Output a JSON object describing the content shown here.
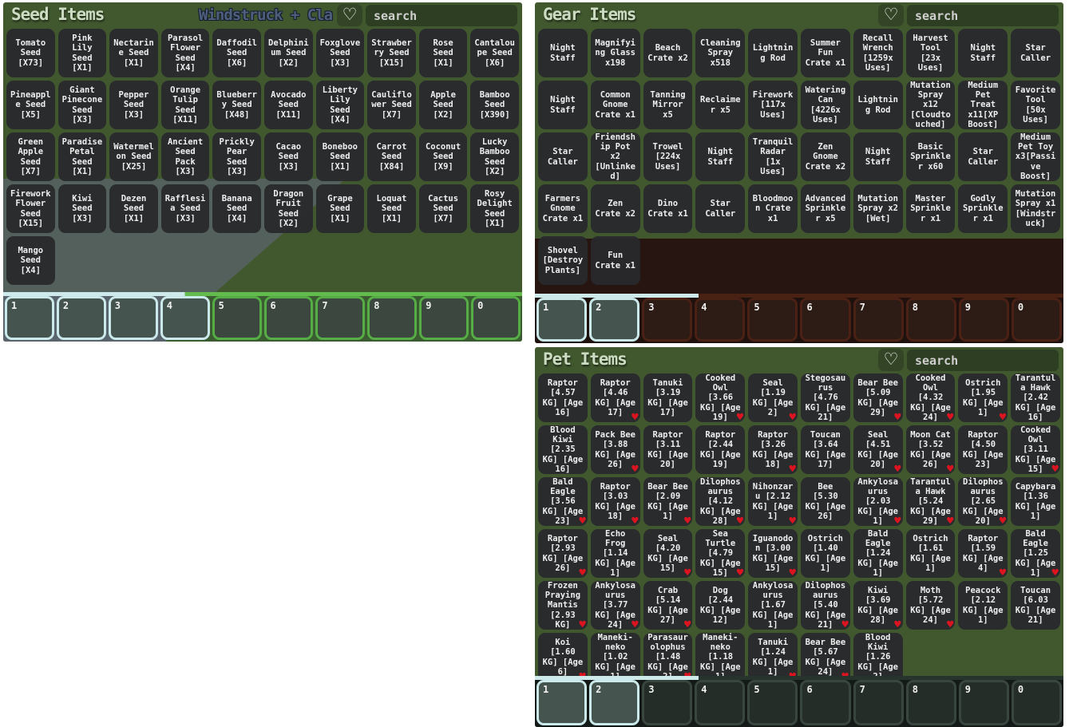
{
  "colors": {
    "panel_green": "#41582f",
    "tile_bg": "#292a2d",
    "hotbar_cyan": "#cbe8ea",
    "hotbar_green": "#56ad45",
    "hotbar_maroon": "#4a2114",
    "heart_red": "#dc1420",
    "scenery_gray": "#59636b",
    "gear_lower_maroon": "#271511"
  },
  "seed": {
    "title": "Seed Items",
    "event_text": "Windstruck + Cla",
    "search_placeholder": "search",
    "items": [
      "Tomato Seed [X73]",
      "Pink Lily Seed [X1]",
      "Nectarine Seed [X1]",
      "Parasol Flower Seed [X4]",
      "Daffodil Seed [X6]",
      "Delphinium Seed [X2]",
      "Foxglove Seed [X3]",
      "Strawberry Seed [X15]",
      "Rose Seed [X1]",
      "Cantaloupe Seed [X6]",
      "Pineapple Seed [X5]",
      "Giant Pinecone Seed [X3]",
      "Pepper Seed [X3]",
      "Orange Tulip Seed [X11]",
      "Blueberry Seed [X48]",
      "Avocado Seed [X11]",
      "Liberty Lily Seed [X4]",
      "Cauliflower Seed [X7]",
      "Apple Seed [X2]",
      "Bamboo Seed [X390]",
      "Green Apple Seed [X7]",
      "Paradise Petal Seed [X1]",
      "Watermelon Seed [X25]",
      "Ancient Seed Pack [X3]",
      "Prickly Pear Seed [X3]",
      "Cacao Seed [X3]",
      "Boneboo Seed [X1]",
      "Carrot Seed [X84]",
      "Coconut Seed [X9]",
      "Lucky Bamboo Seed [X2]",
      "Firework Flower Seed [X15]",
      "Kiwi Seed [X3]",
      "Dezen Seed [X1]",
      "Rafflesia Seed [X3]",
      "Banana Seed [X4]",
      "Dragon Fruit Seed [X2]",
      "Grape Seed [X1]",
      "Loquat Seed [X1]",
      "Cactus Seed [X7]",
      "Rosy Delight Seed [X1]",
      "Mango Seed [X4]"
    ],
    "hotbar": [
      {
        "num": "1",
        "style": "cyan"
      },
      {
        "num": "2",
        "style": "cyan"
      },
      {
        "num": "3",
        "style": "cyan"
      },
      {
        "num": "4",
        "style": "cyan"
      },
      {
        "num": "5",
        "style": "green"
      },
      {
        "num": "6",
        "style": "green"
      },
      {
        "num": "7",
        "style": "green"
      },
      {
        "num": "8",
        "style": "green"
      },
      {
        "num": "9",
        "style": "green"
      },
      {
        "num": "0",
        "style": "green"
      }
    ]
  },
  "gear": {
    "title": "Gear Items",
    "search_placeholder": "search",
    "items": [
      "Night Staff",
      "Magnifying Glass x198",
      "Beach Crate x2",
      "Cleaning Spray x518",
      "Lightning Rod",
      "Summer Fun Crate x1",
      "Recall Wrench [1259x Uses]",
      "Harvest Tool [23x Uses]",
      "Night Staff",
      "Star Caller",
      "Night Staff",
      "Common Gnome Crate x1",
      "Tanning Mirror x5",
      "Reclaimer x5",
      "Firework [117x Uses]",
      "Watering Can [4226x Uses]",
      "Lightning Rod",
      "Mutation Spray x12 [Cloudtouched]",
      "Medium Pet Treat x11[XP Boost]",
      "Favorite Tool [50x Uses]",
      "Star Caller",
      "Friendship Pot x2 [Unlinked]",
      "Trowel [224x Uses]",
      "Night Staff",
      "Tranquil Radar [1x Uses]",
      "Zen Gnome Crate x2",
      "Night Staff",
      "Basic Sprinkler x60",
      "Star Caller",
      "Medium Pet Toy x3[Passive Boost]",
      "Farmers Gnome Crate x1",
      "Zen Crate x2",
      "Dino Crate x1",
      "Star Caller",
      "Bloodmoon Crate x1",
      "Advanced Sprinkler x5",
      "Mutation Spray x2 [Wet]",
      "Master Sprinkler x1",
      "Godly Sprinkler x1",
      "Mutation Spray x1 [Windstruck]",
      "Shovel [Destroy Plants]",
      "Fun Crate x1"
    ],
    "hotbar": [
      {
        "num": "1",
        "style": "cyan"
      },
      {
        "num": "2",
        "style": "cyan"
      },
      {
        "num": "3",
        "style": "maroon"
      },
      {
        "num": "4",
        "style": "maroon"
      },
      {
        "num": "5",
        "style": "maroon"
      },
      {
        "num": "6",
        "style": "maroon"
      },
      {
        "num": "7",
        "style": "maroon"
      },
      {
        "num": "8",
        "style": "maroon"
      },
      {
        "num": "9",
        "style": "maroon"
      },
      {
        "num": "0",
        "style": "maroon"
      }
    ]
  },
  "pets": {
    "title": "Pet Items",
    "search_placeholder": "search",
    "items": [
      {
        "label": "Raptor [4.57 KG] [Age 16]",
        "favorited": false
      },
      {
        "label": "Raptor [4.46 KG] [Age 17]",
        "favorited": true
      },
      {
        "label": "Tanuki [3.19 KG] [Age 17]",
        "favorited": false
      },
      {
        "label": "Cooked Owl [3.66 KG] [Age 19]",
        "favorited": true
      },
      {
        "label": "Seal [1.19 KG] [Age 2]",
        "favorited": true
      },
      {
        "label": "Stegosaurus [4.76 KG] [Age 21]",
        "favorited": false
      },
      {
        "label": "Bear Bee [5.09 KG] [Age 29]",
        "favorited": true
      },
      {
        "label": "Cooked Owl [4.32 KG] [Age 24]",
        "favorited": true
      },
      {
        "label": "Ostrich [1.95 KG] [Age 1]",
        "favorited": true
      },
      {
        "label": "Tarantula Hawk [2.42 KG] [Age 16]",
        "favorited": false
      },
      {
        "label": "Blood Kiwi [2.35 KG] [Age 16]",
        "favorited": false
      },
      {
        "label": "Pack Bee [3.88 KG] [Age 26]",
        "favorited": true
      },
      {
        "label": "Raptor [3.11 KG] [Age 20]",
        "favorited": false
      },
      {
        "label": "Raptor [2.44 KG] [Age 19]",
        "favorited": false
      },
      {
        "label": "Raptor [3.26 KG] [Age 18]",
        "favorited": true
      },
      {
        "label": "Toucan [3.64 KG] [Age 17]",
        "favorited": false
      },
      {
        "label": "Seal [4.51 KG] [Age 20]",
        "favorited": true
      },
      {
        "label": "Moon Cat [3.52 KG] [Age 26]",
        "favorited": true
      },
      {
        "label": "Raptor [4.50 KG] [Age 23]",
        "favorited": false
      },
      {
        "label": "Cooked Owl [3.11 KG] [Age 15]",
        "favorited": true
      },
      {
        "label": "Bald Eagle [3.56 KG] [Age 23]",
        "favorited": true
      },
      {
        "label": "Raptor [3.03 KG] [Age 18]",
        "favorited": true
      },
      {
        "label": "Bear Bee [2.09 KG] [Age 1]",
        "favorited": true
      },
      {
        "label": "Dilophosaurus [4.12 KG] [Age 28]",
        "favorited": true
      },
      {
        "label": "Nihonzaru [2.12 KG] [Age 1]",
        "favorited": true
      },
      {
        "label": "Bee [5.30 KG] [Age 26]",
        "favorited": false
      },
      {
        "label": "Ankylosaurus [2.03 KG] [Age 1]",
        "favorited": true
      },
      {
        "label": "Tarantula Hawk [5.24 KG] [Age 29]",
        "favorited": true
      },
      {
        "label": "Dilophosaurus [2.65 KG] [Age 20]",
        "favorited": true
      },
      {
        "label": "Capybara [1.36 KG] [Age 1]",
        "favorited": false
      },
      {
        "label": "Raptor [2.93 KG] [Age 26]",
        "favorited": true
      },
      {
        "label": "Echo Frog [1.14 KG] [Age 1]",
        "favorited": false
      },
      {
        "label": "Seal [4.20 KG] [Age 15]",
        "favorited": true
      },
      {
        "label": "Sea Turtle [4.79 KG] [Age 15]",
        "favorited": true
      },
      {
        "label": "Iguanodon [3.00 KG] [Age 15]",
        "favorited": true
      },
      {
        "label": "Ostrich [1.40 KG] [Age 1]",
        "favorited": false
      },
      {
        "label": "Bald Eagle [1.24 KG] [Age 1]",
        "favorited": false
      },
      {
        "label": "Ostrich [1.61 KG] [Age 1]",
        "favorited": false
      },
      {
        "label": "Raptor [1.59 KG] [Age 4]",
        "favorited": true
      },
      {
        "label": "Bald Eagle [1.25 KG] [Age 1]",
        "favorited": true
      },
      {
        "label": "Frozen Praying Mantis [2.93 KG]",
        "favorited": true
      },
      {
        "label": "Ankylosaurus [3.77 KG] [Age 24]",
        "favorited": true
      },
      {
        "label": "Crab [5.14 KG] [Age 27]",
        "favorited": true
      },
      {
        "label": "Dog [2.44 KG] [Age 12]",
        "favorited": false
      },
      {
        "label": "Ankylosaurus [1.67 KG] [Age 1]",
        "favorited": false
      },
      {
        "label": "Dilophosaurus [5.40 KG] [Age 21]",
        "favorited": true
      },
      {
        "label": "Kiwi [3.69 KG] [Age 28]",
        "favorited": true
      },
      {
        "label": "Moth [5.72 KG] [Age 24]",
        "favorited": true
      },
      {
        "label": "Peacock [2.12 KG] [Age 1]",
        "favorited": false
      },
      {
        "label": "Toucan [6.03 KG] [Age 21]",
        "favorited": false
      },
      {
        "label": "Koi [1.60 KG] [Age 6]",
        "favorited": true
      },
      {
        "label": "Maneki-neko [1.02 KG] [Age 1]",
        "favorited": false
      },
      {
        "label": "Parasaurolophus [1.48 KG] [Age 2]",
        "favorited": true
      },
      {
        "label": "Maneki-neko [1.18 KG] [Age 1]",
        "favorited": false
      },
      {
        "label": "Tanuki [1.24 KG] [Age 1]",
        "favorited": true
      },
      {
        "label": "Bear Bee [5.67 KG] [Age 24]",
        "favorited": true
      },
      {
        "label": "Blood Kiwi [1.26 KG] [Age 2]",
        "favorited": false
      }
    ],
    "hotbar": [
      {
        "num": "1",
        "style": "cyan"
      },
      {
        "num": "2",
        "style": "cyan"
      },
      {
        "num": "3",
        "style": "dark"
      },
      {
        "num": "4",
        "style": "dark"
      },
      {
        "num": "5",
        "style": "dark"
      },
      {
        "num": "6",
        "style": "dark"
      },
      {
        "num": "7",
        "style": "dark"
      },
      {
        "num": "8",
        "style": "dark"
      },
      {
        "num": "9",
        "style": "dark"
      },
      {
        "num": "0",
        "style": "dark"
      }
    ]
  }
}
